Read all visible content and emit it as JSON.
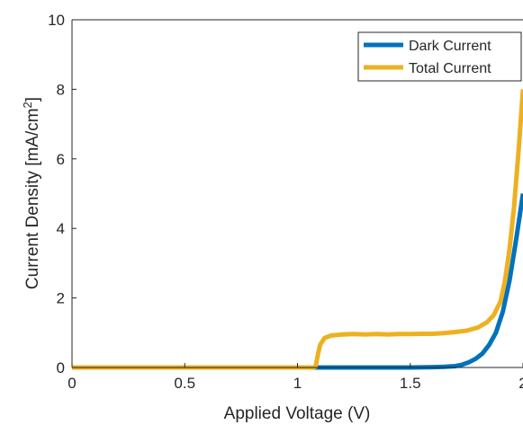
{
  "chart_data": {
    "type": "line",
    "title": "",
    "xlabel": "Applied Voltage (V)",
    "ylabel": "Current Density [mA/cm",
    "ylabel_sup": "2",
    "ylabel_close": "]",
    "xlim": [
      0,
      2
    ],
    "ylim": [
      0,
      10
    ],
    "xticks": [
      0,
      0.5,
      1,
      1.5,
      2
    ],
    "xtick_labels": [
      "0",
      "0.5",
      "1",
      "1.5",
      "2"
    ],
    "yticks": [
      0,
      2,
      4,
      6,
      8,
      10
    ],
    "ytick_labels": [
      "0",
      "2",
      "4",
      "6",
      "8",
      "10"
    ],
    "grid": false,
    "legend_position": "top-right",
    "series": [
      {
        "name": "Dark Current",
        "color": "#0072BD",
        "x": [
          0,
          0.5,
          1.0,
          1.3,
          1.5,
          1.6,
          1.65,
          1.7,
          1.73,
          1.76,
          1.79,
          1.82,
          1.85,
          1.88,
          1.91,
          1.94,
          1.97,
          2.0
        ],
        "y": [
          0,
          0,
          0,
          0,
          0,
          0.01,
          0.02,
          0.04,
          0.08,
          0.15,
          0.25,
          0.4,
          0.65,
          1.0,
          1.6,
          2.5,
          3.7,
          5.0
        ]
      },
      {
        "name": "Total Current",
        "color": "#EDB120",
        "x": [
          0,
          0.5,
          1.0,
          1.07,
          1.08,
          1.09,
          1.1,
          1.12,
          1.15,
          1.2,
          1.25,
          1.3,
          1.35,
          1.4,
          1.45,
          1.5,
          1.55,
          1.6,
          1.65,
          1.7,
          1.75,
          1.8,
          1.84,
          1.87,
          1.9,
          1.92,
          1.94,
          1.96,
          1.98,
          2.0
        ],
        "y": [
          0,
          0,
          0,
          0,
          0.02,
          0.35,
          0.65,
          0.85,
          0.92,
          0.95,
          0.96,
          0.95,
          0.96,
          0.95,
          0.96,
          0.96,
          0.97,
          0.97,
          0.99,
          1.02,
          1.06,
          1.15,
          1.3,
          1.5,
          1.9,
          2.5,
          3.4,
          4.6,
          6.2,
          8.0
        ]
      }
    ]
  }
}
